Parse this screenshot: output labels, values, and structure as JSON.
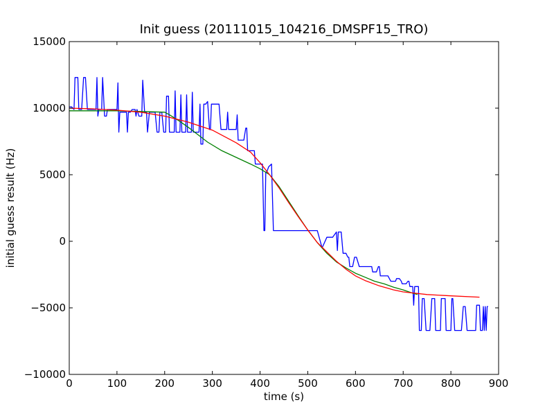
{
  "chart_data": {
    "type": "line",
    "title": "Init guess (20111015_104216_DMSPF15_TRO)",
    "xlabel": "time (s)",
    "ylabel": "initial guess result (Hz)",
    "xlim": [
      0,
      900
    ],
    "ylim": [
      -10000,
      15000
    ],
    "xticks": [
      0,
      100,
      200,
      300,
      400,
      500,
      600,
      700,
      800,
      900
    ],
    "yticks": [
      -10000,
      -5000,
      0,
      5000,
      10000,
      15000
    ],
    "xtick_labels": [
      "0",
      "100",
      "200",
      "300",
      "400",
      "500",
      "600",
      "700",
      "800",
      "900"
    ],
    "ytick_labels": [
      "−10000",
      "−5000",
      "0",
      "5000",
      "10000",
      "15000"
    ],
    "grid": false,
    "series": [
      {
        "color": "#0000ff",
        "x": [
          0,
          5,
          10,
          12,
          14,
          18,
          20,
          22,
          26,
          30,
          32,
          34,
          38,
          40,
          44,
          48,
          50,
          52,
          56,
          58,
          60,
          62,
          64,
          68,
          70,
          74,
          78,
          80,
          82,
          86,
          90,
          96,
          100,
          102,
          104,
          106,
          108,
          110,
          114,
          120,
          122,
          124,
          128,
          132,
          138,
          140,
          142,
          146,
          150,
          152,
          154,
          158,
          160,
          162,
          164,
          168,
          172,
          174,
          176,
          180,
          184,
          188,
          190,
          192,
          194,
          198,
          200,
          202,
          204,
          208,
          210,
          212,
          216,
          220,
          222,
          224,
          228,
          232,
          234,
          236,
          240,
          244,
          246,
          248,
          252,
          256,
          258,
          260,
          264,
          268,
          272,
          274,
          276,
          280,
          282,
          284,
          286,
          290,
          294,
          296,
          298,
          302,
          306,
          310,
          312,
          314,
          318,
          326,
          330,
          332,
          334,
          340,
          346,
          350,
          352,
          354,
          362,
          366,
          370,
          372,
          374,
          384,
          388,
          390,
          392,
          400,
          405,
          408,
          410,
          412,
          414,
          418,
          424,
          428,
          430,
          436,
          448,
          460,
          470,
          480,
          490,
          500,
          510,
          512,
          514,
          520,
          530,
          540,
          546,
          548,
          550,
          552,
          560,
          562,
          564,
          570,
          574,
          576,
          580,
          584,
          586,
          588,
          594,
          598,
          600,
          602,
          608,
          616,
          620,
          622,
          624,
          630,
          634,
          636,
          638,
          644,
          648,
          650,
          652,
          660,
          664,
          666,
          668,
          674,
          678,
          682,
          684,
          686,
          692,
          696,
          698,
          700,
          706,
          710,
          712,
          714,
          718,
          720,
          722,
          724,
          728,
          730,
          732,
          734,
          738,
          740,
          742,
          744,
          748,
          752,
          754,
          756,
          760,
          764,
          766,
          768,
          772,
          776,
          778,
          780,
          784,
          788,
          790,
          792,
          796,
          800,
          802,
          804,
          808,
          812,
          814,
          816,
          818,
          822,
          826,
          828,
          830,
          834,
          838,
          840,
          842,
          846,
          850,
          852,
          854,
          858,
          860,
          862,
          864,
          866,
          868,
          870,
          872,
          874,
          876,
          878
        ],
        "y": [
          10100,
          10100,
          9900,
          12300,
          12300,
          12300,
          9900,
          9900,
          9900,
          12300,
          12300,
          12300,
          9900,
          9900,
          9900,
          9900,
          9900,
          9900,
          9900,
          12300,
          9400,
          9900,
          9900,
          9900,
          12300,
          9400,
          9400,
          9900,
          9900,
          9900,
          9900,
          9900,
          9900,
          11900,
          8200,
          9700,
          9700,
          9700,
          9700,
          9700,
          8200,
          9700,
          9700,
          9900,
          9900,
          9400,
          9900,
          9400,
          9400,
          9400,
          12100,
          9700,
          9700,
          9700,
          8200,
          9700,
          9700,
          9700,
          9700,
          9700,
          8200,
          8200,
          9700,
          9700,
          9700,
          8200,
          8200,
          8200,
          10900,
          10900,
          8200,
          8200,
          8200,
          8200,
          11300,
          8200,
          8200,
          8200,
          11000,
          8200,
          8200,
          8200,
          11000,
          8200,
          8200,
          8200,
          11200,
          8200,
          8200,
          8200,
          8200,
          10300,
          7300,
          7300,
          10300,
          10300,
          10300,
          10500,
          8400,
          8400,
          10300,
          10300,
          10300,
          10300,
          10300,
          10300,
          8400,
          8400,
          8400,
          9700,
          8400,
          8400,
          8400,
          8400,
          9500,
          7600,
          7600,
          7600,
          8500,
          8500,
          6800,
          6800,
          6800,
          5800,
          5800,
          5800,
          5800,
          800,
          800,
          5200,
          5200,
          5600,
          5800,
          800,
          800,
          800,
          800,
          800,
          800,
          800,
          800,
          800,
          800,
          800,
          800,
          800,
          -500,
          300,
          300,
          300,
          300,
          300,
          700,
          -700,
          700,
          700,
          -900,
          -900,
          -900,
          -1200,
          -1200,
          -1900,
          -1900,
          -1200,
          -1200,
          -1200,
          -1900,
          -1900,
          -1900,
          -1900,
          -1900,
          -1900,
          -1900,
          -2300,
          -2300,
          -2300,
          -1900,
          -1900,
          -2600,
          -2600,
          -2600,
          -2600,
          -2600,
          -3000,
          -3000,
          -3000,
          -3000,
          -2800,
          -2800,
          -3000,
          -3200,
          -3200,
          -3200,
          -3000,
          -3000,
          -3400,
          -3400,
          -3400,
          -4800,
          -3400,
          -3400,
          -3400,
          -3400,
          -6700,
          -6700,
          -4300,
          -4300,
          -4300,
          -6700,
          -6700,
          -6700,
          -6700,
          -4300,
          -4300,
          -4300,
          -6700,
          -6700,
          -6700,
          -6700,
          -4300,
          -4300,
          -4300,
          -6700,
          -6700,
          -6700,
          -6700,
          -4300,
          -4300,
          -6700,
          -6700,
          -6700,
          -6700,
          -6700,
          -6700,
          -4900,
          -4900,
          -4900,
          -6700,
          -6700,
          -6700,
          -6700,
          -6700,
          -6700,
          -6700,
          -4800,
          -4800,
          -4800,
          -6700,
          -6700,
          -6700,
          -4900,
          -6700,
          -4900,
          -6700,
          -4900,
          -4900
        ]
      },
      {
        "color": "#008000",
        "x": [
          0,
          50,
          100,
          150,
          200,
          210,
          230,
          250,
          270,
          290,
          320,
          350,
          380,
          400,
          420,
          440,
          460,
          480,
          500,
          520,
          540,
          560,
          580,
          600,
          620,
          640,
          660,
          680,
          700,
          720,
          730
        ],
        "y": [
          9800,
          9800,
          9800,
          9750,
          9700,
          9500,
          9050,
          8550,
          8000,
          7450,
          6800,
          6300,
          5800,
          5450,
          5000,
          4100,
          3000,
          1900,
          850,
          -100,
          -900,
          -1550,
          -2000,
          -2400,
          -2700,
          -3000,
          -3200,
          -3450,
          -3650,
          -3900,
          -4000
        ]
      },
      {
        "color": "#ff0000",
        "x": [
          0,
          50,
          100,
          150,
          200,
          250,
          300,
          350,
          380,
          400,
          420,
          440,
          460,
          480,
          500,
          520,
          540,
          560,
          580,
          600,
          620,
          650,
          680,
          700,
          750,
          800,
          860
        ],
        "y": [
          10000,
          9950,
          9850,
          9700,
          9400,
          8950,
          8350,
          7400,
          6700,
          5900,
          5000,
          4000,
          2900,
          1850,
          850,
          -100,
          -800,
          -1500,
          -2100,
          -2600,
          -2950,
          -3350,
          -3650,
          -3800,
          -4000,
          -4100,
          -4200
        ]
      }
    ]
  }
}
